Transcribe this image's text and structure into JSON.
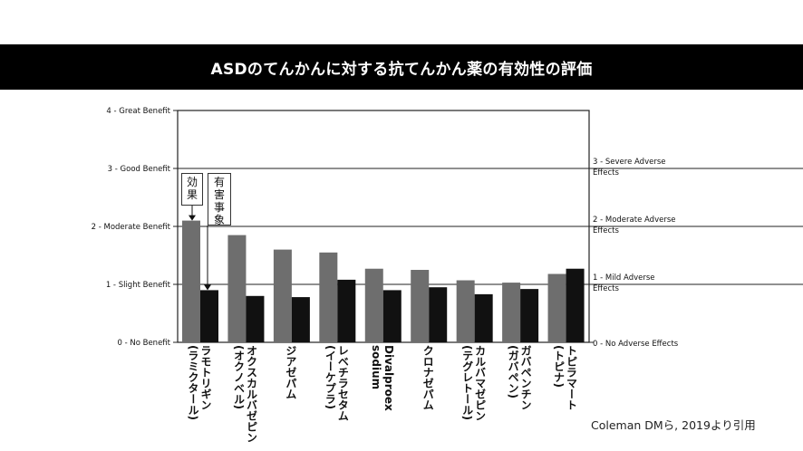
{
  "header": {
    "title": "ASDのてんかんに対する抗てんかん薬の有効性の評価"
  },
  "citation": "Coleman DMら, 2019より引用",
  "callouts": {
    "efficacy": "効果",
    "adverse": "有害事象"
  },
  "colors": {
    "efficacy_bar": "#6e6e6e",
    "adverse_bar": "#111111",
    "title_bg": "#000000"
  },
  "chart_data": {
    "type": "bar",
    "title": "",
    "categories": [
      [
        "ラモトリギン",
        "(ラミクタール)"
      ],
      [
        "オクスカルバゼピン",
        "(オクノベル)"
      ],
      [
        "ジアゼパム"
      ],
      [
        "レベチラセタム",
        "(イーケプラ)"
      ],
      [
        "Divalproex",
        "sodium"
      ],
      [
        "クロナゼパム"
      ],
      [
        "カルバマゼピン",
        "(テグレトール)"
      ],
      [
        "ガバペンチン",
        "(ガバペン)"
      ],
      [
        "トピラマート",
        "(トピナ)"
      ]
    ],
    "series": [
      {
        "values": [
          2.1,
          1.85,
          1.6,
          1.55,
          1.27,
          1.25,
          1.07,
          1.03,
          1.18
        ],
        "axis": "left"
      },
      {
        "values": [
          0.9,
          0.8,
          0.78,
          1.08,
          0.9,
          0.95,
          0.83,
          0.92,
          1.27
        ],
        "axis": "right"
      }
    ],
    "left_axis": {
      "ylim": [
        0,
        4
      ],
      "ticks": [
        {
          "value": 0,
          "label": "0 - No Benefit"
        },
        {
          "value": 1,
          "label": "1 - Slight Benefit"
        },
        {
          "value": 2,
          "label": "2 - Moderate Benefit"
        },
        {
          "value": 3,
          "label": "3 - Good Benefit"
        },
        {
          "value": 4,
          "label": "4 - Great Benefit"
        }
      ]
    },
    "right_axis": {
      "ylim": [
        0,
        4
      ],
      "ticks": [
        {
          "value": 0,
          "label": "0 - No Adverse Effects"
        },
        {
          "value": 1,
          "label": "1 - Mild Adverse Effects"
        },
        {
          "value": 2,
          "label": "2 - Moderate Adverse Effects"
        },
        {
          "value": 3,
          "label": "3 - Severe Adverse Effects"
        }
      ]
    },
    "gridlines": [
      1,
      2,
      3
    ]
  }
}
